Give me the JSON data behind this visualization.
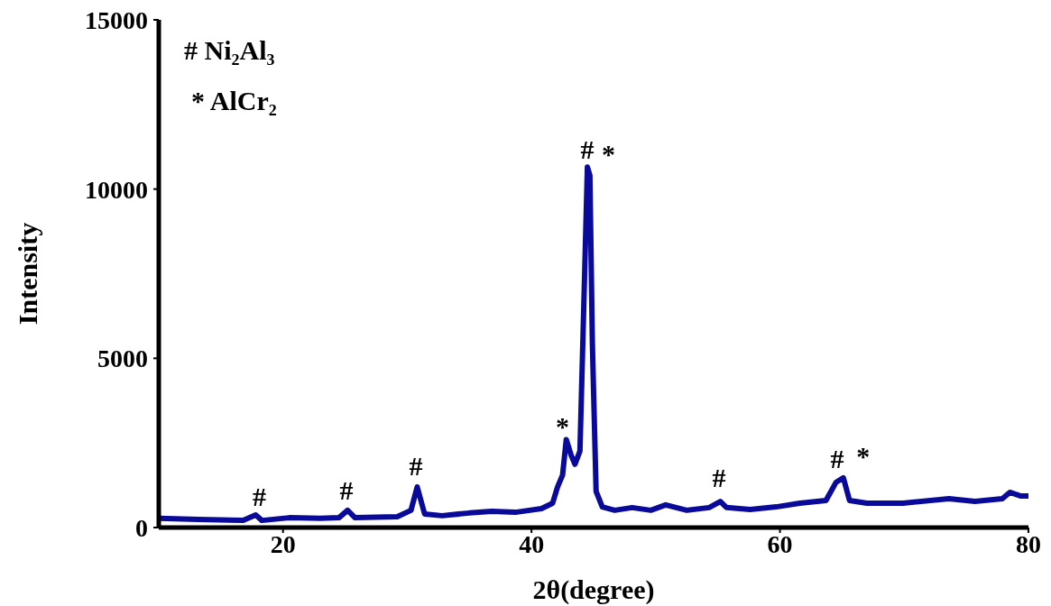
{
  "chart_data": {
    "type": "line",
    "xlabel": "2θ(degree)",
    "ylabel": "Intensity",
    "x": [
      10,
      13.2,
      16.8,
      17.8,
      18.3,
      20.5,
      23.0,
      24.5,
      25.2,
      25.8,
      29.2,
      30.3,
      30.8,
      31.4,
      32.8,
      35.0,
      36.8,
      38.7,
      40.8,
      41.7,
      42.1,
      42.5,
      42.8,
      43.2,
      43.5,
      43.9,
      44.2,
      44.5,
      44.7,
      44.9,
      45.2,
      45.7,
      46.7,
      48.1,
      49.6,
      50.8,
      52.5,
      54.3,
      55.2,
      55.7,
      57.6,
      59.7,
      61.6,
      63.7,
      64.5,
      65.1,
      65.6,
      67.0,
      69.9,
      73.6,
      75.7,
      77.9,
      78.5,
      79.4,
      80
    ],
    "series": [
      {
        "color": "#0a0a9a",
        "values": [
          270,
          240,
          210,
          370,
          210,
          290,
          270,
          290,
          510,
          290,
          320,
          510,
          1200,
          400,
          350,
          430,
          480,
          450,
          560,
          720,
          1200,
          1550,
          2600,
          2130,
          1870,
          2260,
          6400,
          10650,
          10400,
          5460,
          1070,
          610,
          510,
          590,
          510,
          670,
          510,
          590,
          770,
          590,
          530,
          610,
          720,
          800,
          1330,
          1470,
          800,
          720,
          720,
          850,
          770,
          850,
          1040,
          930,
          930
        ]
      }
    ],
    "xlim": [
      10,
      80
    ],
    "xticks": [
      20,
      40,
      60,
      80
    ],
    "ylim": [
      0,
      15000
    ],
    "yticks": [
      0,
      5000,
      10000,
      15000
    ],
    "marker": "none",
    "line_style": "solid",
    "annotations": [
      "#",
      "#",
      "#",
      "*",
      "#",
      "*",
      "#",
      "#",
      "*",
      "# Ni₂Al₃",
      "* AlCr₂"
    ]
  }
}
